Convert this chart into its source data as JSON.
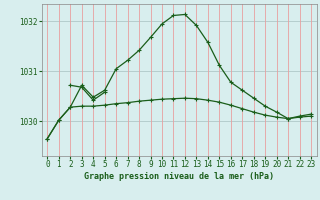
{
  "background_color": "#d8eeee",
  "grid_color_v": "#e8a0a0",
  "grid_color_h": "#b0c8c8",
  "line_color": "#1a5e1a",
  "title": "Graphe pression niveau de la mer (hPa)",
  "xlim": [
    -0.5,
    23.5
  ],
  "ylim": [
    1029.3,
    1032.35
  ],
  "yticks": [
    1030,
    1031,
    1032
  ],
  "xticks": [
    0,
    1,
    2,
    3,
    4,
    5,
    6,
    7,
    8,
    9,
    10,
    11,
    12,
    13,
    14,
    15,
    16,
    17,
    18,
    19,
    20,
    21,
    22,
    23
  ],
  "series1_x": [
    0,
    1,
    2,
    3,
    4,
    5,
    6,
    7,
    8,
    9,
    10,
    11,
    12,
    13,
    14,
    15,
    16,
    17,
    18,
    19,
    20,
    21,
    22,
    23
  ],
  "series1_y": [
    1029.65,
    1030.02,
    1030.28,
    1030.3,
    1030.3,
    1030.32,
    1030.35,
    1030.37,
    1030.4,
    1030.42,
    1030.44,
    1030.45,
    1030.46,
    1030.45,
    1030.42,
    1030.38,
    1030.32,
    1030.25,
    1030.18,
    1030.12,
    1030.08,
    1030.05,
    1030.08,
    1030.1
  ],
  "series2_x": [
    0,
    1,
    2,
    3,
    4,
    5,
    6,
    7,
    8,
    9,
    10,
    11,
    12,
    13,
    14,
    15,
    16,
    17,
    18,
    19,
    20,
    21,
    22,
    23
  ],
  "series2_y": [
    1029.65,
    1030.02,
    1030.28,
    1030.72,
    1030.48,
    1030.62,
    1031.05,
    1031.22,
    1031.42,
    1031.68,
    1031.95,
    1032.12,
    1032.14,
    1031.92,
    1031.58,
    1031.12,
    1030.78,
    1030.62,
    1030.46,
    1030.3,
    1030.18,
    1030.05,
    1030.1,
    1030.14
  ],
  "series3_x": [
    2,
    3,
    4,
    5
  ],
  "series3_y": [
    1030.72,
    1030.68,
    1030.42,
    1030.58
  ]
}
